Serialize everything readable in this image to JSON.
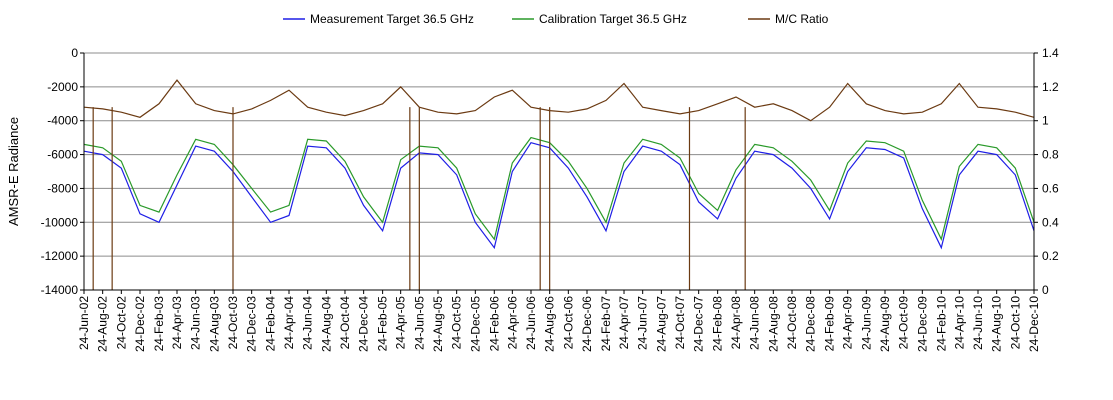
{
  "chart_data": {
    "type": "line",
    "ylabel": "AMSR-E Radiance",
    "y2label": "",
    "ylim": [
      -14000,
      0
    ],
    "y2lim": [
      0,
      1.4
    ],
    "yticks": [
      "0",
      "-2000",
      "-4000",
      "-6000",
      "-8000",
      "-10000",
      "-12000",
      "-14000"
    ],
    "y2ticks": [
      "1.4",
      "1.2",
      "1",
      "0.8",
      "0.6",
      "0.4",
      "0.2",
      "0"
    ],
    "grid": true,
    "legend_position": "top",
    "x_tick_labels": [
      "24-Jun-02",
      "24-Aug-02",
      "24-Oct-02",
      "24-Dec-02",
      "24-Feb-03",
      "24-Apr-03",
      "24-Jun-03",
      "24-Aug-03",
      "24-Oct-03",
      "24-Dec-03",
      "24-Feb-04",
      "24-Apr-04",
      "24-Jun-04",
      "24-Aug-04",
      "24-Oct-04",
      "24-Dec-04",
      "24-Feb-05",
      "24-Apr-05",
      "24-Jun-05",
      "24-Aug-05",
      "24-Oct-05",
      "24-Dec-05",
      "24-Feb-06",
      "24-Apr-06",
      "24-Jun-06",
      "24-Aug-06",
      "24-Oct-06",
      "24-Dec-06",
      "24-Feb-07",
      "24-Apr-07",
      "24-Jun-07",
      "24-Aug-07",
      "24-Oct-07",
      "24-Dec-07",
      "24-Feb-08",
      "24-Apr-08",
      "24-Jun-08",
      "24-Aug-08",
      "24-Oct-08",
      "24-Dec-08",
      "24-Feb-09",
      "24-Apr-09",
      "24-Jun-09",
      "24-Aug-09",
      "24-Oct-09",
      "24-Dec-09",
      "24-Feb-10",
      "24-Apr-10",
      "24-Jun-10",
      "24-Aug-10",
      "24-Oct-10",
      "24-Dec-10"
    ],
    "series": [
      {
        "name": "Measurement Target 36.5 GHz",
        "color": "#1f1fe6",
        "axis": "left",
        "x": [
          "24-Jun-02",
          "24-Aug-02",
          "24-Oct-02",
          "24-Dec-02",
          "24-Feb-03",
          "24-Apr-03",
          "24-Jun-03",
          "24-Aug-03",
          "24-Oct-03",
          "24-Dec-03",
          "24-Feb-04",
          "24-Apr-04",
          "24-Jun-04",
          "24-Aug-04",
          "24-Oct-04",
          "24-Dec-04",
          "24-Feb-05",
          "24-Apr-05",
          "24-Jun-05",
          "24-Aug-05",
          "24-Oct-05",
          "24-Dec-05",
          "24-Feb-06",
          "24-Apr-06",
          "24-Jun-06",
          "24-Aug-06",
          "24-Oct-06",
          "24-Dec-06",
          "24-Feb-07",
          "24-Apr-07",
          "24-Jun-07",
          "24-Aug-07",
          "24-Oct-07",
          "24-Dec-07",
          "24-Feb-08",
          "24-Apr-08",
          "24-Jun-08",
          "24-Aug-08",
          "24-Oct-08",
          "24-Dec-08",
          "24-Feb-09",
          "24-Apr-09",
          "24-Jun-09",
          "24-Aug-09",
          "24-Oct-09",
          "24-Dec-09",
          "24-Feb-10",
          "24-Apr-10",
          "24-Jun-10",
          "24-Aug-10",
          "24-Oct-10",
          "24-Dec-10"
        ],
        "values": [
          -5800,
          -6000,
          -6800,
          -9500,
          -10000,
          -7800,
          -5500,
          -5800,
          -7000,
          -8500,
          -10000,
          -9600,
          -5500,
          -5600,
          -6800,
          -9000,
          -10500,
          -6800,
          -5900,
          -6000,
          -7200,
          -10000,
          -11500,
          -7000,
          -5300,
          -5600,
          -6800,
          -8500,
          -10500,
          -7000,
          -5500,
          -5800,
          -6600,
          -8800,
          -9800,
          -7400,
          -5800,
          -6000,
          -6800,
          -8000,
          -9800,
          -7000,
          -5600,
          -5700,
          -6200,
          -9200,
          -11500,
          -7200,
          -5800,
          -6000,
          -7200,
          -10500
        ]
      },
      {
        "name": "Calibration Target 36.5 GHz",
        "color": "#2a9a2a",
        "axis": "left",
        "x": [
          "24-Jun-02",
          "24-Aug-02",
          "24-Oct-02",
          "24-Dec-02",
          "24-Feb-03",
          "24-Apr-03",
          "24-Jun-03",
          "24-Aug-03",
          "24-Oct-03",
          "24-Dec-03",
          "24-Feb-04",
          "24-Apr-04",
          "24-Jun-04",
          "24-Aug-04",
          "24-Oct-04",
          "24-Dec-04",
          "24-Feb-05",
          "24-Apr-05",
          "24-Jun-05",
          "24-Aug-05",
          "24-Oct-05",
          "24-Dec-05",
          "24-Feb-06",
          "24-Apr-06",
          "24-Jun-06",
          "24-Aug-06",
          "24-Oct-06",
          "24-Dec-06",
          "24-Feb-07",
          "24-Apr-07",
          "24-Jun-07",
          "24-Aug-07",
          "24-Oct-07",
          "24-Dec-07",
          "24-Feb-08",
          "24-Apr-08",
          "24-Jun-08",
          "24-Aug-08",
          "24-Oct-08",
          "24-Dec-08",
          "24-Feb-09",
          "24-Apr-09",
          "24-Jun-09",
          "24-Aug-09",
          "24-Oct-09",
          "24-Dec-09",
          "24-Feb-10",
          "24-Apr-10",
          "24-Jun-10",
          "24-Aug-10",
          "24-Oct-10",
          "24-Dec-10"
        ],
        "values": [
          -5400,
          -5600,
          -6400,
          -9000,
          -9400,
          -7200,
          -5100,
          -5400,
          -6600,
          -8000,
          -9400,
          -9000,
          -5100,
          -5200,
          -6400,
          -8500,
          -10000,
          -6300,
          -5500,
          -5600,
          -6800,
          -9500,
          -11000,
          -6500,
          -5000,
          -5300,
          -6400,
          -8000,
          -10000,
          -6500,
          -5100,
          -5400,
          -6200,
          -8300,
          -9300,
          -6900,
          -5400,
          -5600,
          -6400,
          -7500,
          -9300,
          -6500,
          -5200,
          -5300,
          -5800,
          -8700,
          -11000,
          -6700,
          -5400,
          -5600,
          -6800,
          -10000
        ]
      },
      {
        "name": "M/C Ratio",
        "color": "#6b3a12",
        "axis": "right",
        "x": [
          "24-Jun-02",
          "24-Aug-02",
          "24-Oct-02",
          "24-Dec-02",
          "24-Feb-03",
          "24-Apr-03",
          "24-Jun-03",
          "24-Aug-03",
          "24-Oct-03",
          "24-Dec-03",
          "24-Feb-04",
          "24-Apr-04",
          "24-Jun-04",
          "24-Aug-04",
          "24-Oct-04",
          "24-Dec-04",
          "24-Feb-05",
          "24-Apr-05",
          "24-Jun-05",
          "24-Aug-05",
          "24-Oct-05",
          "24-Dec-05",
          "24-Feb-06",
          "24-Apr-06",
          "24-Jun-06",
          "24-Aug-06",
          "24-Oct-06",
          "24-Dec-06",
          "24-Feb-07",
          "24-Apr-07",
          "24-Jun-07",
          "24-Aug-07",
          "24-Oct-07",
          "24-Dec-07",
          "24-Feb-08",
          "24-Apr-08",
          "24-Jun-08",
          "24-Aug-08",
          "24-Oct-08",
          "24-Dec-08",
          "24-Feb-09",
          "24-Apr-09",
          "24-Jun-09",
          "24-Aug-09",
          "24-Oct-09",
          "24-Dec-09",
          "24-Feb-10",
          "24-Apr-10",
          "24-Jun-10",
          "24-Aug-10",
          "24-Oct-10",
          "24-Dec-10"
        ],
        "values": [
          1.08,
          1.07,
          1.05,
          1.02,
          1.1,
          1.24,
          1.1,
          1.06,
          1.04,
          1.07,
          1.12,
          1.18,
          1.08,
          1.05,
          1.03,
          1.06,
          1.1,
          1.2,
          1.08,
          1.05,
          1.04,
          1.06,
          1.14,
          1.18,
          1.08,
          1.06,
          1.05,
          1.07,
          1.12,
          1.22,
          1.08,
          1.06,
          1.04,
          1.06,
          1.1,
          1.14,
          1.08,
          1.1,
          1.06,
          1.0,
          1.08,
          1.22,
          1.1,
          1.06,
          1.04,
          1.05,
          1.1,
          1.22,
          1.08,
          1.07,
          1.05,
          1.02
        ]
      }
    ],
    "mc_drops": [
      "24-Jul-02",
      "24-Sep-02",
      "24-Oct-03",
      "24-May-05",
      "24-Jun-05",
      "24-Jul-06",
      "24-Aug-06",
      "24-Nov-07",
      "24-May-08"
    ]
  }
}
